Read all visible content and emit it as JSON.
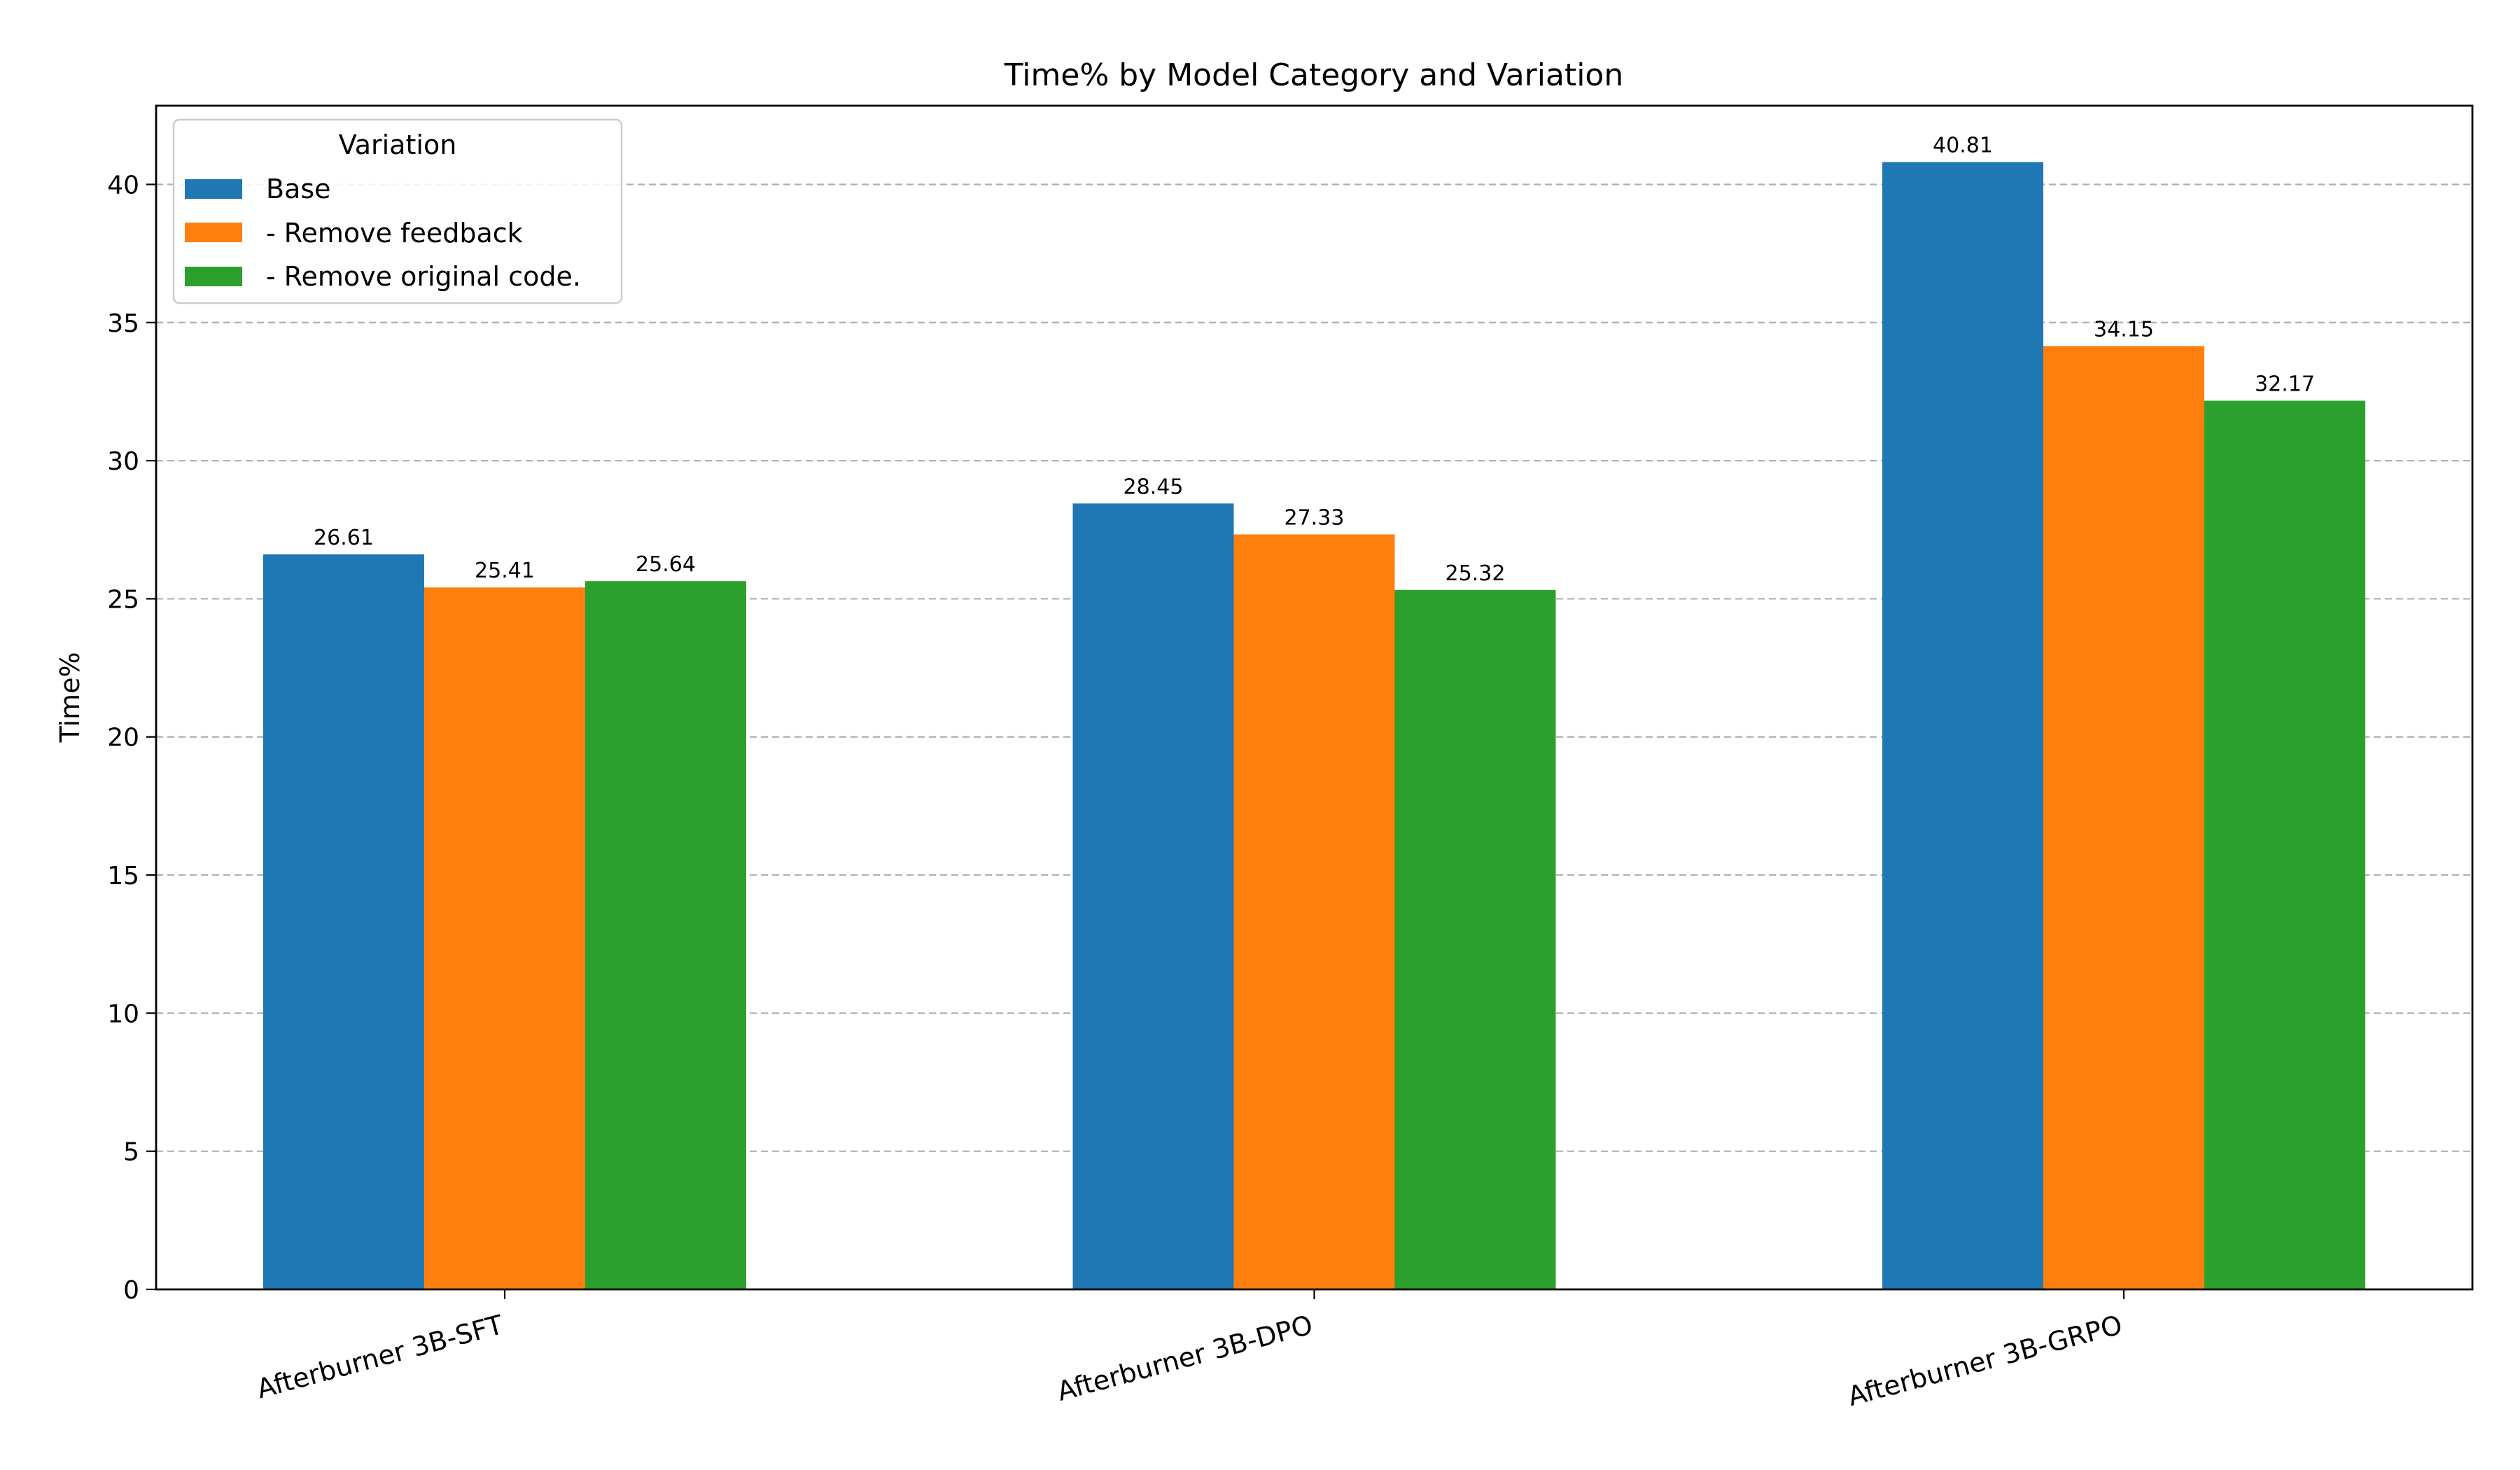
{
  "chart_data": {
    "type": "bar",
    "title": "Time% by Model Category and Variation",
    "xlabel": "",
    "ylabel": "Time%",
    "ylim": [
      0,
      42.85
    ],
    "yticks": [
      0,
      5,
      10,
      15,
      20,
      25,
      30,
      35,
      40
    ],
    "grid": "y-dashed",
    "categories": [
      "Afterburner 3B-SFT",
      "Afterburner 3B-DPO",
      "Afterburner 3B-GRPO"
    ],
    "series": [
      {
        "name": "Base",
        "color": "#1f77b4",
        "values": [
          26.61,
          28.45,
          40.81
        ],
        "labels": [
          "26.61",
          "28.45",
          "40.81"
        ]
      },
      {
        "name": "- Remove feedback",
        "color": "#ff7f0e",
        "values": [
          25.41,
          27.33,
          34.15
        ],
        "labels": [
          "25.41",
          "27.33",
          "34.15"
        ]
      },
      {
        "name": "- Remove original code.",
        "color": "#2ca02c",
        "values": [
          25.64,
          25.32,
          32.17
        ],
        "labels": [
          "25.64",
          "25.32",
          "32.17"
        ]
      }
    ],
    "legend": {
      "title": "Variation",
      "placement": "upper-left"
    }
  }
}
